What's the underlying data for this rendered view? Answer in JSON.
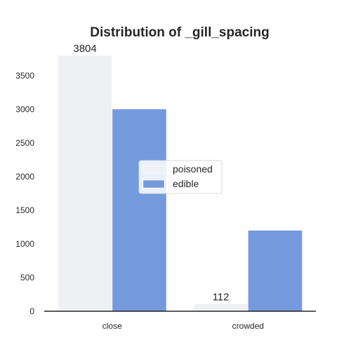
{
  "chart_data": {
    "type": "bar",
    "title": "Distribution of _gill_spacing",
    "xlabel": "",
    "ylabel": "",
    "categories": [
      "close",
      "crowded"
    ],
    "series": [
      {
        "name": "poisoned",
        "values": [
          3804,
          112
        ],
        "color": "#eef0f3"
      },
      {
        "name": "edible",
        "values": [
          3008,
          1204
        ],
        "color": "#7499dd"
      }
    ],
    "data_labels": [
      {
        "series": 0,
        "category": 0,
        "text": "3804"
      },
      {
        "series": 0,
        "category": 1,
        "text": "112"
      }
    ],
    "ylim": [
      0,
      3804
    ],
    "yticks": [
      0,
      500,
      1000,
      1500,
      2000,
      2500,
      3000,
      3500
    ],
    "grid": false,
    "legend_position": "center"
  }
}
